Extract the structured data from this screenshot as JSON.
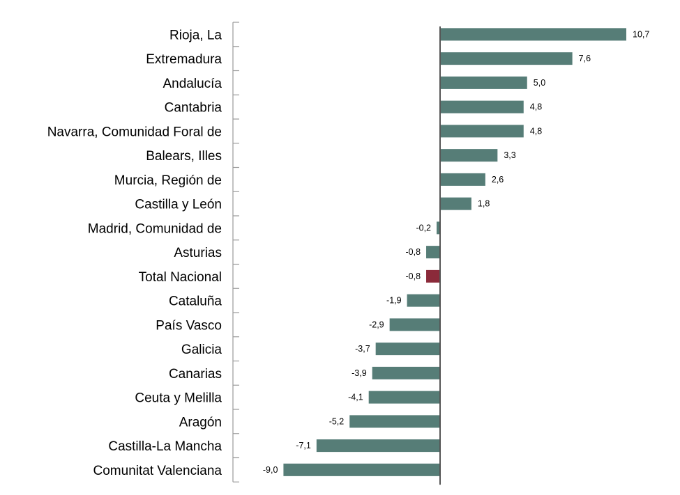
{
  "chart_data": {
    "type": "bar",
    "orientation": "horizontal",
    "categories": [
      "Rioja, La",
      "Extremadura",
      "Andalucía",
      "Cantabria",
      "Navarra, Comunidad Foral de",
      "Balears, Illes",
      "Murcia, Región de",
      "Castilla y León",
      "Madrid, Comunidad de",
      "Asturias",
      "Total Nacional",
      "Cataluña",
      "País Vasco",
      "Galicia",
      "Canarias",
      "Ceuta y Melilla",
      "Aragón",
      "Castilla-La Mancha",
      "Comunitat Valenciana"
    ],
    "values": [
      10.7,
      7.6,
      5.0,
      4.8,
      4.8,
      3.3,
      2.6,
      1.8,
      -0.2,
      -0.8,
      -0.8,
      -1.9,
      -2.9,
      -3.7,
      -3.9,
      -4.1,
      -5.2,
      -7.1,
      -9.0
    ],
    "value_labels": [
      "10,7",
      "7,6",
      "5,0",
      "4,8",
      "4,8",
      "3,3",
      "2,6",
      "1,8",
      "-0,2",
      "-0,8",
      "-0,8",
      "-1,9",
      "-2,9",
      "-3,7",
      "-3,9",
      "-4,1",
      "-5,2",
      "-7,1",
      "-9,0"
    ],
    "highlight_category": "Total Nacional",
    "title": "",
    "xlabel": "",
    "ylabel": "",
    "xlim": [
      -9.0,
      10.7
    ],
    "grid": false,
    "legend": "none",
    "colors": {
      "bar": "#567d77",
      "highlight": "#8b2a3a",
      "axis": "#555555",
      "tick": "#9a9a9a"
    }
  }
}
